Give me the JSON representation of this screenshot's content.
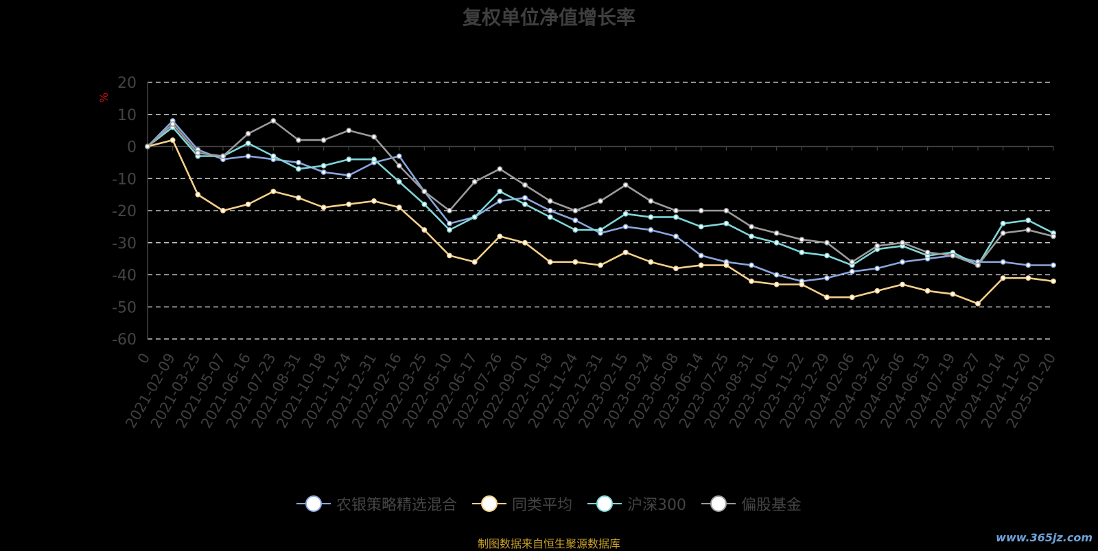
{
  "chart_data": {
    "type": "line",
    "title": "复权单位净值增长率",
    "ylabel": "%",
    "ylim": [
      -60,
      20
    ],
    "yticks": [
      20,
      10,
      0,
      -10,
      -20,
      -30,
      -40,
      -50,
      -60
    ],
    "xticks": [
      "0",
      "2021-02-09",
      "2021-03-25",
      "2021-05-07",
      "2021-06-16",
      "2021-07-23",
      "2021-08-31",
      "2021-10-18",
      "2021-11-24",
      "2021-12-31",
      "2022-02-16",
      "2022-03-25",
      "2022-05-10",
      "2022-06-17",
      "2022-07-26",
      "2022-09-01",
      "2022-10-18",
      "2022-11-24",
      "2022-12-31",
      "2023-02-15",
      "2023-03-24",
      "2023-05-08",
      "2023-06-14",
      "2023-07-25",
      "2023-08-31",
      "2023-10-16",
      "2023-11-22",
      "2023-12-29",
      "2024-02-06",
      "2024-03-22",
      "2024-05-06",
      "2024-06-13",
      "2024-07-19",
      "2024-08-27",
      "2024-10-14",
      "2024-11-20",
      "2025-01-20"
    ],
    "grid": true,
    "legend_position": "bottom",
    "series": [
      {
        "name": "农银策略精选混合",
        "color": "#8aa6dc",
        "values": [
          0,
          8,
          -1,
          -4,
          -3,
          -4,
          -5,
          -8,
          -9,
          -5,
          -3,
          -14,
          -24,
          -22,
          -17,
          -16,
          -20,
          -23,
          -27,
          -25,
          -26,
          -28,
          -34,
          -36,
          -37,
          -40,
          -42,
          -41,
          -39,
          -38,
          -36,
          -35,
          -34,
          -36,
          -36,
          -37,
          -37
        ]
      },
      {
        "name": "同类平均",
        "color": "#f5d08b",
        "values": [
          0,
          2,
          -15,
          -20,
          -18,
          -14,
          -16,
          -19,
          -18,
          -17,
          -19,
          -26,
          -34,
          -36,
          -28,
          -30,
          -36,
          -36,
          -37,
          -33,
          -36,
          -38,
          -37,
          -37,
          -42,
          -43,
          -43,
          -47,
          -47,
          -45,
          -43,
          -45,
          -46,
          -49,
          -41,
          -41,
          -42
        ]
      },
      {
        "name": "沪深300",
        "color": "#7fd6d8",
        "values": [
          0,
          6,
          -3,
          -3,
          1,
          -3,
          -7,
          -6,
          -4,
          -4,
          -11,
          -18,
          -26,
          -22,
          -14,
          -18,
          -22,
          -26,
          -26,
          -21,
          -22,
          -22,
          -25,
          -24,
          -28,
          -30,
          -33,
          -34,
          -37,
          -32,
          -31,
          -34,
          -33,
          -37,
          -24,
          -23,
          -27
        ]
      },
      {
        "name": "偏股基金",
        "color": "#9b9b9b",
        "values": [
          0,
          7,
          -2,
          -3,
          4,
          8,
          2,
          2,
          5,
          3,
          -6,
          -14,
          -20,
          -11,
          -7,
          -12,
          -17,
          -20,
          -17,
          -12,
          -17,
          -20,
          -20,
          -20,
          -25,
          -27,
          -29,
          -30,
          -36,
          -31,
          -30,
          -33,
          -34,
          -37,
          -27,
          -26,
          -28
        ]
      }
    ]
  },
  "source_note": "制图数据来自恒生聚源数据库",
  "watermark": "www.365jz.com"
}
